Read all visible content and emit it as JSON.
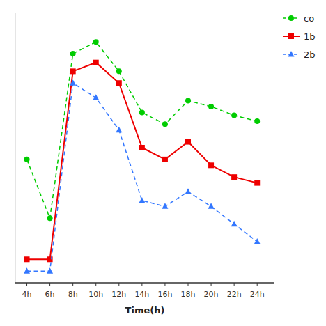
{
  "chart_data": {
    "type": "line",
    "xlabel": "Time(h)",
    "x": [
      4,
      6,
      8,
      10,
      12,
      14,
      16,
      18,
      20,
      22,
      24
    ],
    "xlim": [
      3,
      25.5
    ],
    "xticks": [
      {
        "value": 4,
        "label": "4h"
      },
      {
        "value": 6,
        "label": "6h"
      },
      {
        "value": 8,
        "label": "8h"
      },
      {
        "value": 10,
        "label": "10h"
      },
      {
        "value": 12,
        "label": "12h"
      },
      {
        "value": 14,
        "label": "14h"
      },
      {
        "value": 16,
        "label": "16h"
      },
      {
        "value": 18,
        "label": "18h"
      },
      {
        "value": 20,
        "label": "20h"
      },
      {
        "value": 22,
        "label": "22h"
      },
      {
        "value": 24,
        "label": "24h"
      }
    ],
    "ylim": [
      0.0,
      0.92
    ],
    "tick_labels": "x",
    "grid": false,
    "legend": "right",
    "series": [
      {
        "name": "co",
        "color": "#00cc00",
        "marker": "circle",
        "line_style": "dashed",
        "values": [
          0.42,
          0.22,
          0.78,
          0.82,
          0.72,
          0.58,
          0.54,
          0.62,
          0.6,
          0.57,
          0.55
        ]
      },
      {
        "name": "1b",
        "color": "#ee0000",
        "marker": "square",
        "line_style": "solid",
        "values": [
          0.08,
          0.08,
          0.72,
          0.75,
          0.68,
          0.46,
          0.42,
          0.48,
          0.4,
          0.36,
          0.34
        ]
      },
      {
        "name": "2b",
        "color": "#3377ff",
        "marker": "triangle",
        "line_style": "dashed",
        "values": [
          0.04,
          0.04,
          0.68,
          0.63,
          0.52,
          0.28,
          0.26,
          0.31,
          0.26,
          0.2,
          0.14
        ]
      }
    ]
  }
}
